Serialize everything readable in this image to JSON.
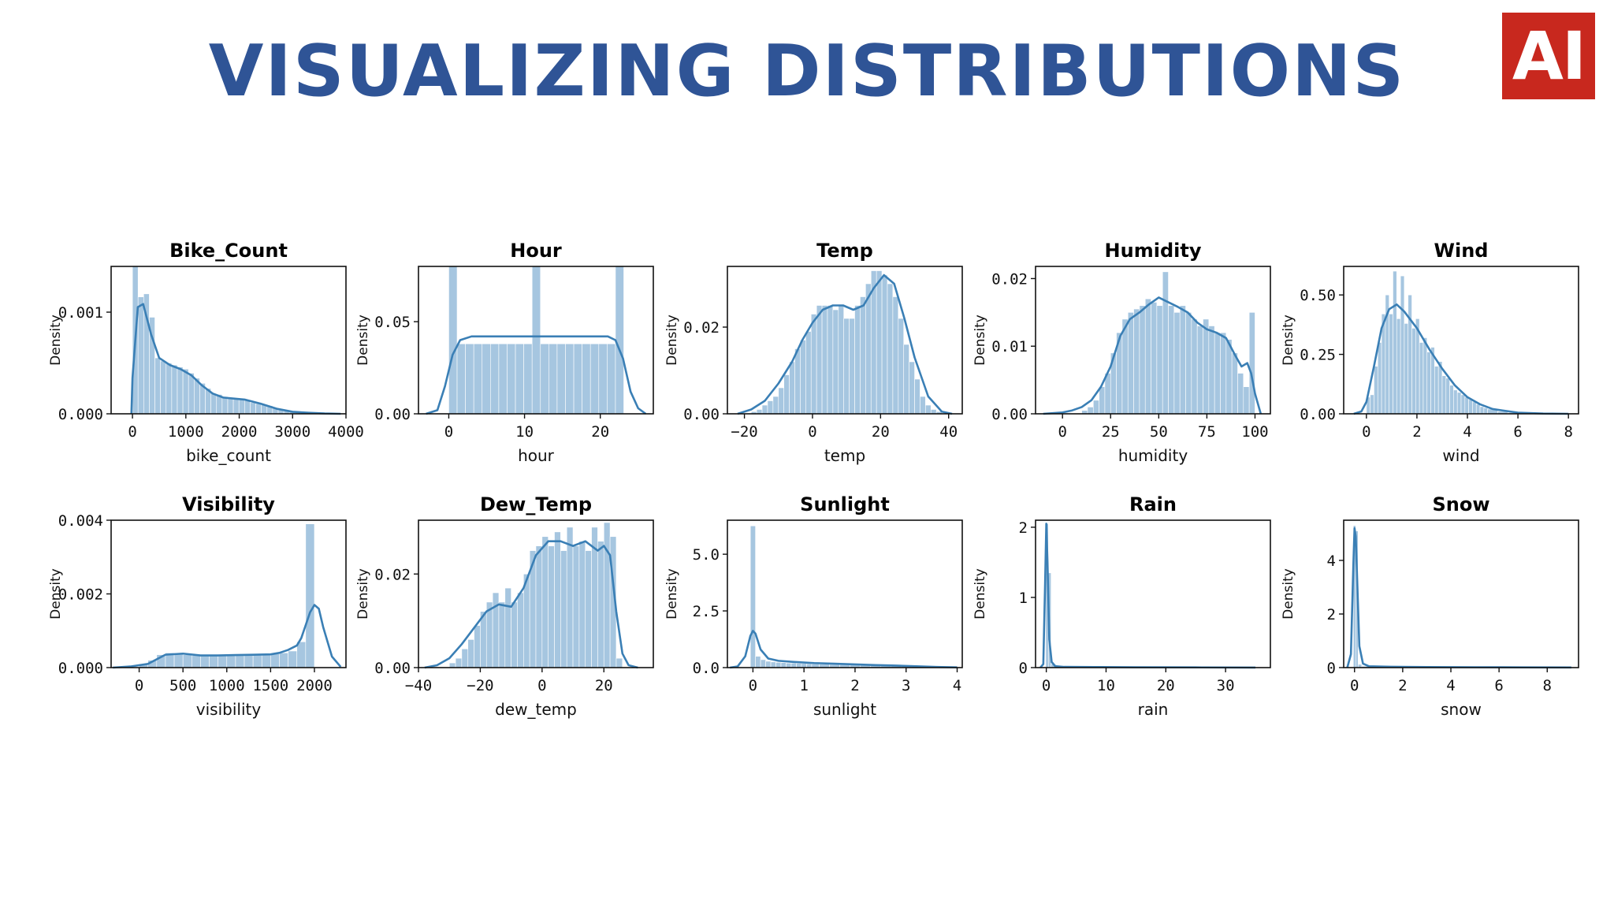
{
  "slide": {
    "title": "VISUALIZING DISTRIBUTIONS",
    "logo_text": "AI",
    "colors": {
      "title": "#2f5496",
      "logo_bg": "#c8281e",
      "hist": "#a6c6e0",
      "kde": "#3a7fb5"
    }
  },
  "chart_data": [
    {
      "type": "histogram",
      "title": "Bike_Count",
      "xlabel": "bike_count",
      "ylabel": "Density",
      "xlim": [
        -400,
        4000
      ],
      "ylim": [
        0,
        0.00145
      ],
      "xticks": [
        0,
        1000,
        2000,
        3000,
        4000
      ],
      "xtick_labels": [
        "0",
        "1000",
        "2000",
        "3000",
        "4000"
      ],
      "yticks": [
        0,
        0.001
      ],
      "ytick_labels": [
        "0.000",
        "0.001"
      ],
      "bins_x": [
        0,
        105,
        210,
        315,
        420,
        525,
        630,
        735,
        840,
        945,
        1050,
        1155,
        1260,
        1365,
        1470,
        1575,
        1680,
        1785,
        1890,
        1995,
        2100,
        2205,
        2310,
        2415,
        2520,
        2625,
        2730,
        2835,
        2940,
        3045,
        3150,
        3255,
        3360,
        3465
      ],
      "bins_y": [
        0.00145,
        0.00115,
        0.00118,
        0.00095,
        0.00055,
        0.00052,
        0.0005,
        0.00048,
        0.00046,
        0.00044,
        0.0004,
        0.00035,
        0.0003,
        0.00025,
        0.0002,
        0.00019,
        0.00017,
        0.00016,
        0.00015,
        0.00014,
        0.00013,
        0.00011,
        0.0001,
        9e-05,
        8e-05,
        6e-05,
        4e-05,
        3e-05,
        2e-05,
        2e-05,
        1e-05,
        1e-05,
        1e-05,
        5e-06
      ],
      "kde_x": [
        -20,
        0,
        100,
        200,
        350,
        500,
        700,
        900,
        1100,
        1300,
        1500,
        1700,
        1900,
        2100,
        2400,
        2700,
        3000,
        3300,
        3600,
        3900
      ],
      "kde_y": [
        0,
        0.00035,
        0.00105,
        0.00108,
        0.00078,
        0.00055,
        0.00048,
        0.00044,
        0.00038,
        0.00028,
        0.0002,
        0.00016,
        0.00015,
        0.00014,
        0.0001,
        5e-05,
        2e-05,
        1e-05,
        3e-06,
        0
      ]
    },
    {
      "type": "histogram",
      "title": "Hour",
      "xlabel": "hour",
      "ylabel": "Density",
      "xlim": [
        -4,
        27
      ],
      "ylim": [
        0,
        0.08
      ],
      "xticks": [
        0,
        10,
        20
      ],
      "xtick_labels": [
        "0",
        "10",
        "20"
      ],
      "yticks": [
        0,
        0.05
      ],
      "ytick_labels": [
        "0.00",
        "0.05"
      ],
      "bins_x": [
        0,
        1.1,
        2.2,
        3.3,
        4.4,
        5.5,
        6.6,
        7.7,
        8.8,
        9.9,
        11,
        12.1,
        13.2,
        14.3,
        15.4,
        16.5,
        17.6,
        18.7,
        19.8,
        20.9,
        22
      ],
      "bins_y": [
        0.08,
        0.038,
        0.038,
        0.038,
        0.038,
        0.038,
        0.038,
        0.038,
        0.038,
        0.038,
        0.08,
        0.038,
        0.038,
        0.038,
        0.038,
        0.038,
        0.038,
        0.038,
        0.038,
        0.038,
        0.08
      ],
      "kde_x": [
        -3,
        -1.5,
        -0.5,
        0.5,
        1.5,
        3,
        6,
        10,
        14,
        18,
        21,
        22,
        23,
        24,
        25,
        26
      ],
      "kde_y": [
        0,
        0.002,
        0.015,
        0.032,
        0.04,
        0.042,
        0.042,
        0.042,
        0.042,
        0.042,
        0.042,
        0.04,
        0.03,
        0.012,
        0.003,
        0
      ]
    },
    {
      "type": "histogram",
      "title": "Temp",
      "xlabel": "temp",
      "ylabel": "Density",
      "xlim": [
        -25,
        44
      ],
      "ylim": [
        0,
        0.034
      ],
      "xticks": [
        -20,
        0,
        20,
        40
      ],
      "xtick_labels": [
        "−20",
        "0",
        "20",
        "40"
      ],
      "yticks": [
        0,
        0.02
      ],
      "ytick_labels": [
        "0.00",
        "0.02"
      ],
      "bins_x": [
        -18,
        -16.4,
        -14.8,
        -13.2,
        -11.6,
        -10,
        -8.4,
        -6.8,
        -5.2,
        -3.6,
        -2,
        -0.4,
        1.2,
        2.8,
        4.4,
        6,
        7.6,
        9.2,
        10.8,
        12.4,
        14,
        15.6,
        17.2,
        18.8,
        20.4,
        22,
        23.6,
        25.2,
        26.8,
        28.4,
        30,
        31.6,
        33.2,
        34.8,
        36.4
      ],
      "bins_y": [
        0.0005,
        0.001,
        0.002,
        0.003,
        0.004,
        0.006,
        0.009,
        0.012,
        0.015,
        0.017,
        0.019,
        0.023,
        0.025,
        0.025,
        0.025,
        0.024,
        0.025,
        0.022,
        0.022,
        0.025,
        0.027,
        0.03,
        0.033,
        0.033,
        0.032,
        0.03,
        0.027,
        0.022,
        0.016,
        0.012,
        0.008,
        0.004,
        0.002,
        0.001,
        0.0005
      ],
      "kde_x": [
        -22,
        -18,
        -14,
        -10,
        -6,
        -3,
        0,
        3,
        6,
        9,
        12,
        15,
        18,
        21,
        24,
        27,
        30,
        34,
        38,
        41
      ],
      "kde_y": [
        0,
        0.001,
        0.003,
        0.007,
        0.012,
        0.017,
        0.021,
        0.024,
        0.025,
        0.025,
        0.024,
        0.025,
        0.029,
        0.032,
        0.03,
        0.022,
        0.013,
        0.004,
        0.0005,
        0
      ]
    },
    {
      "type": "histogram",
      "title": "Humidity",
      "xlabel": "humidity",
      "ylabel": "Density",
      "xlim": [
        -14,
        108
      ],
      "ylim": [
        0,
        0.0218
      ],
      "xticks": [
        0,
        25,
        50,
        75,
        100
      ],
      "xtick_labels": [
        "0",
        "25",
        "50",
        "75",
        "100"
      ],
      "yticks": [
        0,
        0.01,
        0.02
      ],
      "ytick_labels": [
        "0.00",
        "0.01",
        "0.02"
      ],
      "bins_x": [
        10,
        13,
        16,
        19,
        22,
        25,
        28,
        31,
        34,
        37,
        40,
        43,
        46,
        49,
        52,
        55,
        58,
        61,
        64,
        67,
        70,
        73,
        76,
        79,
        82,
        85,
        88,
        91,
        94,
        97
      ],
      "bins_y": [
        0.0005,
        0.001,
        0.002,
        0.004,
        0.006,
        0.009,
        0.012,
        0.014,
        0.015,
        0.0155,
        0.016,
        0.017,
        0.0165,
        0.016,
        0.021,
        0.016,
        0.015,
        0.016,
        0.015,
        0.014,
        0.013,
        0.014,
        0.013,
        0.012,
        0.012,
        0.011,
        0.009,
        0.006,
        0.004,
        0.015
      ],
      "kde_x": [
        -10,
        0,
        5,
        10,
        15,
        20,
        25,
        30,
        35,
        40,
        45,
        50,
        55,
        60,
        65,
        70,
        75,
        80,
        85,
        90,
        93,
        96,
        98,
        100,
        103
      ],
      "kde_y": [
        0,
        0.0002,
        0.0005,
        0.001,
        0.002,
        0.004,
        0.007,
        0.0115,
        0.014,
        0.015,
        0.0162,
        0.0172,
        0.0165,
        0.0158,
        0.015,
        0.0135,
        0.0125,
        0.012,
        0.0112,
        0.0085,
        0.007,
        0.0075,
        0.006,
        0.003,
        0
      ]
    },
    {
      "type": "histogram",
      "title": "Wind",
      "xlabel": "wind",
      "ylabel": "Density",
      "xlim": [
        -0.9,
        8.4
      ],
      "ylim": [
        0,
        0.62
      ],
      "xticks": [
        0,
        2,
        4,
        6,
        8
      ],
      "xtick_labels": [
        "0",
        "2",
        "4",
        "6",
        "8"
      ],
      "yticks": [
        0,
        0.25,
        0.5
      ],
      "ytick_labels": [
        "0.00",
        "0.25",
        "0.50"
      ],
      "bins_x": [
        0,
        0.15,
        0.3,
        0.45,
        0.6,
        0.75,
        0.9,
        1.05,
        1.2,
        1.35,
        1.5,
        1.65,
        1.8,
        1.95,
        2.1,
        2.25,
        2.4,
        2.55,
        2.7,
        2.85,
        3,
        3.15,
        3.3,
        3.45,
        3.6,
        3.75,
        3.9,
        4.05,
        4.2,
        4.35,
        4.5,
        4.65,
        4.8,
        5.2,
        5.6
      ],
      "bins_y": [
        0.07,
        0.08,
        0.2,
        0.3,
        0.42,
        0.5,
        0.42,
        0.6,
        0.4,
        0.58,
        0.38,
        0.5,
        0.36,
        0.4,
        0.3,
        0.32,
        0.26,
        0.28,
        0.2,
        0.22,
        0.16,
        0.15,
        0.12,
        0.1,
        0.09,
        0.08,
        0.07,
        0.06,
        0.05,
        0.04,
        0.03,
        0.025,
        0.02,
        0.01,
        0.005
      ],
      "kde_x": [
        -0.5,
        -0.2,
        0,
        0.3,
        0.6,
        0.9,
        1.2,
        1.5,
        2,
        2.5,
        3,
        3.5,
        4,
        4.5,
        5,
        6,
        7,
        8
      ],
      "kde_y": [
        0,
        0.01,
        0.05,
        0.2,
        0.36,
        0.44,
        0.46,
        0.43,
        0.36,
        0.27,
        0.19,
        0.12,
        0.07,
        0.04,
        0.02,
        0.005,
        0.001,
        0
      ]
    },
    {
      "type": "histogram",
      "title": "Visibility",
      "xlabel": "visibility",
      "ylabel": "Density",
      "xlim": [
        -320,
        2360
      ],
      "ylim": [
        0,
        0.004
      ],
      "xticks": [
        0,
        500,
        1000,
        1500,
        2000
      ],
      "xtick_labels": [
        "0",
        "500",
        "1000",
        "1500",
        "2000"
      ],
      "yticks": [
        0,
        0.002,
        0.004
      ],
      "ytick_labels": [
        "0.000",
        "0.002",
        "0.004"
      ],
      "bins_x": [
        0,
        100,
        200,
        300,
        400,
        500,
        600,
        700,
        800,
        900,
        1000,
        1100,
        1200,
        1300,
        1400,
        1500,
        1600,
        1700,
        1800,
        1900
      ],
      "bins_y": [
        0.0001,
        0.0002,
        0.00035,
        0.0004,
        0.00038,
        0.00035,
        0.00033,
        0.00033,
        0.00033,
        0.00033,
        0.00033,
        0.00034,
        0.00035,
        0.00035,
        0.00036,
        0.00037,
        0.0004,
        0.00045,
        0.0007,
        0.0039
      ],
      "kde_x": [
        -300,
        -100,
        100,
        300,
        500,
        700,
        900,
        1100,
        1300,
        1500,
        1600,
        1700,
        1800,
        1850,
        1900,
        1950,
        2000,
        2050,
        2100,
        2200,
        2300
      ],
      "kde_y": [
        0,
        3e-05,
        0.0001,
        0.00035,
        0.00038,
        0.00033,
        0.00033,
        0.00034,
        0.00035,
        0.00036,
        0.0004,
        0.00048,
        0.0006,
        0.0008,
        0.00115,
        0.0015,
        0.0017,
        0.0016,
        0.0011,
        0.0003,
        2e-05
      ]
    },
    {
      "type": "histogram",
      "title": "Dew_Temp",
      "xlabel": "dew_temp",
      "ylabel": "Density",
      "xlim": [
        -40,
        36
      ],
      "ylim": [
        0,
        0.0315
      ],
      "xticks": [
        -40,
        -20,
        0,
        20
      ],
      "xtick_labels": [
        "−40",
        "−20",
        "0",
        "20"
      ],
      "yticks": [
        0,
        0.02
      ],
      "ytick_labels": [
        "0.00",
        "0.02"
      ],
      "bins_x": [
        -30,
        -28,
        -26,
        -24,
        -22,
        -20,
        -18,
        -16,
        -14,
        -12,
        -10,
        -8,
        -6,
        -4,
        -2,
        0,
        2,
        4,
        6,
        8,
        10,
        12,
        14,
        16,
        18,
        20,
        22,
        24
      ],
      "bins_y": [
        0.001,
        0.002,
        0.004,
        0.006,
        0.009,
        0.012,
        0.014,
        0.016,
        0.014,
        0.017,
        0.014,
        0.016,
        0.02,
        0.025,
        0.026,
        0.028,
        0.026,
        0.029,
        0.025,
        0.03,
        0.026,
        0.027,
        0.025,
        0.03,
        0.027,
        0.031,
        0.028,
        0.002
      ],
      "kde_x": [
        -38,
        -34,
        -30,
        -26,
        -22,
        -18,
        -14,
        -10,
        -6,
        -2,
        2,
        6,
        10,
        14,
        18,
        20,
        22,
        24,
        26,
        28,
        31
      ],
      "kde_y": [
        0,
        0.0005,
        0.002,
        0.005,
        0.0085,
        0.012,
        0.0135,
        0.013,
        0.017,
        0.024,
        0.027,
        0.027,
        0.026,
        0.027,
        0.025,
        0.026,
        0.024,
        0.012,
        0.003,
        0.0005,
        0
      ]
    },
    {
      "type": "histogram",
      "title": "Sunlight",
      "xlabel": "sunlight",
      "ylabel": "Density",
      "xlim": [
        -0.5,
        4.1
      ],
      "ylim": [
        0,
        6.5
      ],
      "xticks": [
        0,
        1,
        2,
        3,
        4
      ],
      "xtick_labels": [
        "0",
        "1",
        "2",
        "3",
        "4"
      ],
      "yticks": [
        0,
        2.5,
        5
      ],
      "ytick_labels": [
        "0.0",
        "2.5",
        "5.0"
      ],
      "bins_x": [
        -0.05,
        0.05,
        0.15,
        0.25,
        0.35,
        0.45,
        0.55,
        0.65,
        0.75,
        0.85,
        0.95,
        1.05,
        1.15,
        1.3,
        1.5,
        1.7,
        1.9,
        2.1,
        2.3,
        2.5,
        2.7,
        2.9,
        3.1,
        3.3,
        3.5
      ],
      "bins_y": [
        6.25,
        0.5,
        0.35,
        0.28,
        0.25,
        0.23,
        0.22,
        0.2,
        0.2,
        0.19,
        0.18,
        0.17,
        0.16,
        0.15,
        0.14,
        0.13,
        0.12,
        0.11,
        0.1,
        0.09,
        0.08,
        0.07,
        0.05,
        0.04,
        0.03
      ],
      "kde_x": [
        -0.45,
        -0.3,
        -0.15,
        -0.05,
        0,
        0.05,
        0.15,
        0.3,
        0.5,
        0.8,
        1.2,
        1.6,
        2,
        2.4,
        2.8,
        3.2,
        3.6,
        4
      ],
      "kde_y": [
        0,
        0.05,
        0.5,
        1.4,
        1.62,
        1.5,
        0.8,
        0.4,
        0.3,
        0.25,
        0.2,
        0.17,
        0.14,
        0.11,
        0.09,
        0.06,
        0.03,
        0.01
      ]
    },
    {
      "type": "histogram",
      "title": "Rain",
      "xlabel": "rain",
      "ylabel": "Density",
      "xlim": [
        -1.8,
        37.5
      ],
      "ylim": [
        0,
        2.1
      ],
      "xticks": [
        0,
        10,
        20,
        30
      ],
      "xtick_labels": [
        "0",
        "10",
        "20",
        "30"
      ],
      "yticks": [
        0,
        1,
        2
      ],
      "ytick_labels": [
        "0",
        "1",
        "2"
      ],
      "bins_x": [
        -0.1,
        0.35,
        0.8,
        1.6,
        2.4,
        4,
        6,
        8,
        10,
        14,
        18,
        22,
        26,
        30
      ],
      "bins_y": [
        2.05,
        1.35,
        0.05,
        0.03,
        0.02,
        0.015,
        0.01,
        0.01,
        0.008,
        0.006,
        0.005,
        0.004,
        0.003,
        0.002
      ],
      "kde_x": [
        -1,
        -0.5,
        -0.2,
        0,
        0.2,
        0.5,
        0.9,
        1.5,
        3,
        8,
        15,
        25,
        35
      ],
      "kde_y": [
        0,
        0.05,
        1.2,
        2.05,
        1.5,
        0.4,
        0.08,
        0.02,
        0.01,
        0.008,
        0.005,
        0.003,
        0.001
      ]
    },
    {
      "type": "histogram",
      "title": "Snow",
      "xlabel": "snow",
      "ylabel": "Density",
      "xlim": [
        -0.45,
        9.3
      ],
      "ylim": [
        0,
        5.5
      ],
      "xticks": [
        0,
        2,
        4,
        6,
        8
      ],
      "xtick_labels": [
        "0",
        "2",
        "4",
        "6",
        "8"
      ],
      "yticks": [
        0,
        2,
        4
      ],
      "ytick_labels": [
        "0",
        "2",
        "4"
      ],
      "bins_x": [
        -0.05,
        0.05,
        0.15,
        0.3,
        0.6,
        1,
        2,
        3,
        4,
        5,
        6,
        7,
        8
      ],
      "bins_y": [
        5.3,
        5.1,
        0.12,
        0.05,
        0.03,
        0.02,
        0.015,
        0.01,
        0.01,
        0.008,
        0.006,
        0.004,
        0.003
      ],
      "kde_x": [
        -0.3,
        -0.15,
        -0.05,
        0,
        0.05,
        0.12,
        0.2,
        0.35,
        0.6,
        1.5,
        3,
        5,
        7,
        9
      ],
      "kde_y": [
        0,
        0.5,
        3.8,
        5.2,
        4.9,
        3,
        0.8,
        0.15,
        0.05,
        0.03,
        0.02,
        0.015,
        0.01,
        0.005
      ]
    }
  ]
}
